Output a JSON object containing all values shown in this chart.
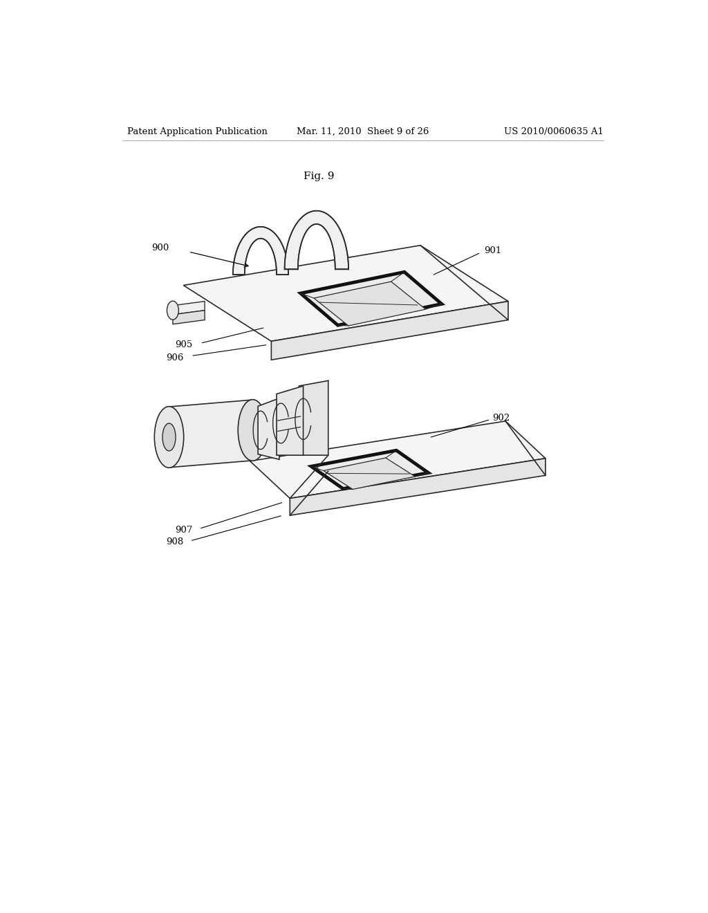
{
  "background_color": "#ffffff",
  "header_left": "Patent Application Publication",
  "header_mid": "Mar. 11, 2010  Sheet 9 of 26",
  "header_right": "US 2010/0060635 A1",
  "fig_label": "Fig. 9",
  "header_fontsize": 9.5,
  "fig_fontsize": 11,
  "label_fontsize": 9.5,
  "line_color": "#2a2a2a",
  "thick_line_color": "#111111",
  "face_color_top": "#f8f8f8",
  "face_color_side": "#e8e8e8",
  "face_color_front": "#eeeeee"
}
